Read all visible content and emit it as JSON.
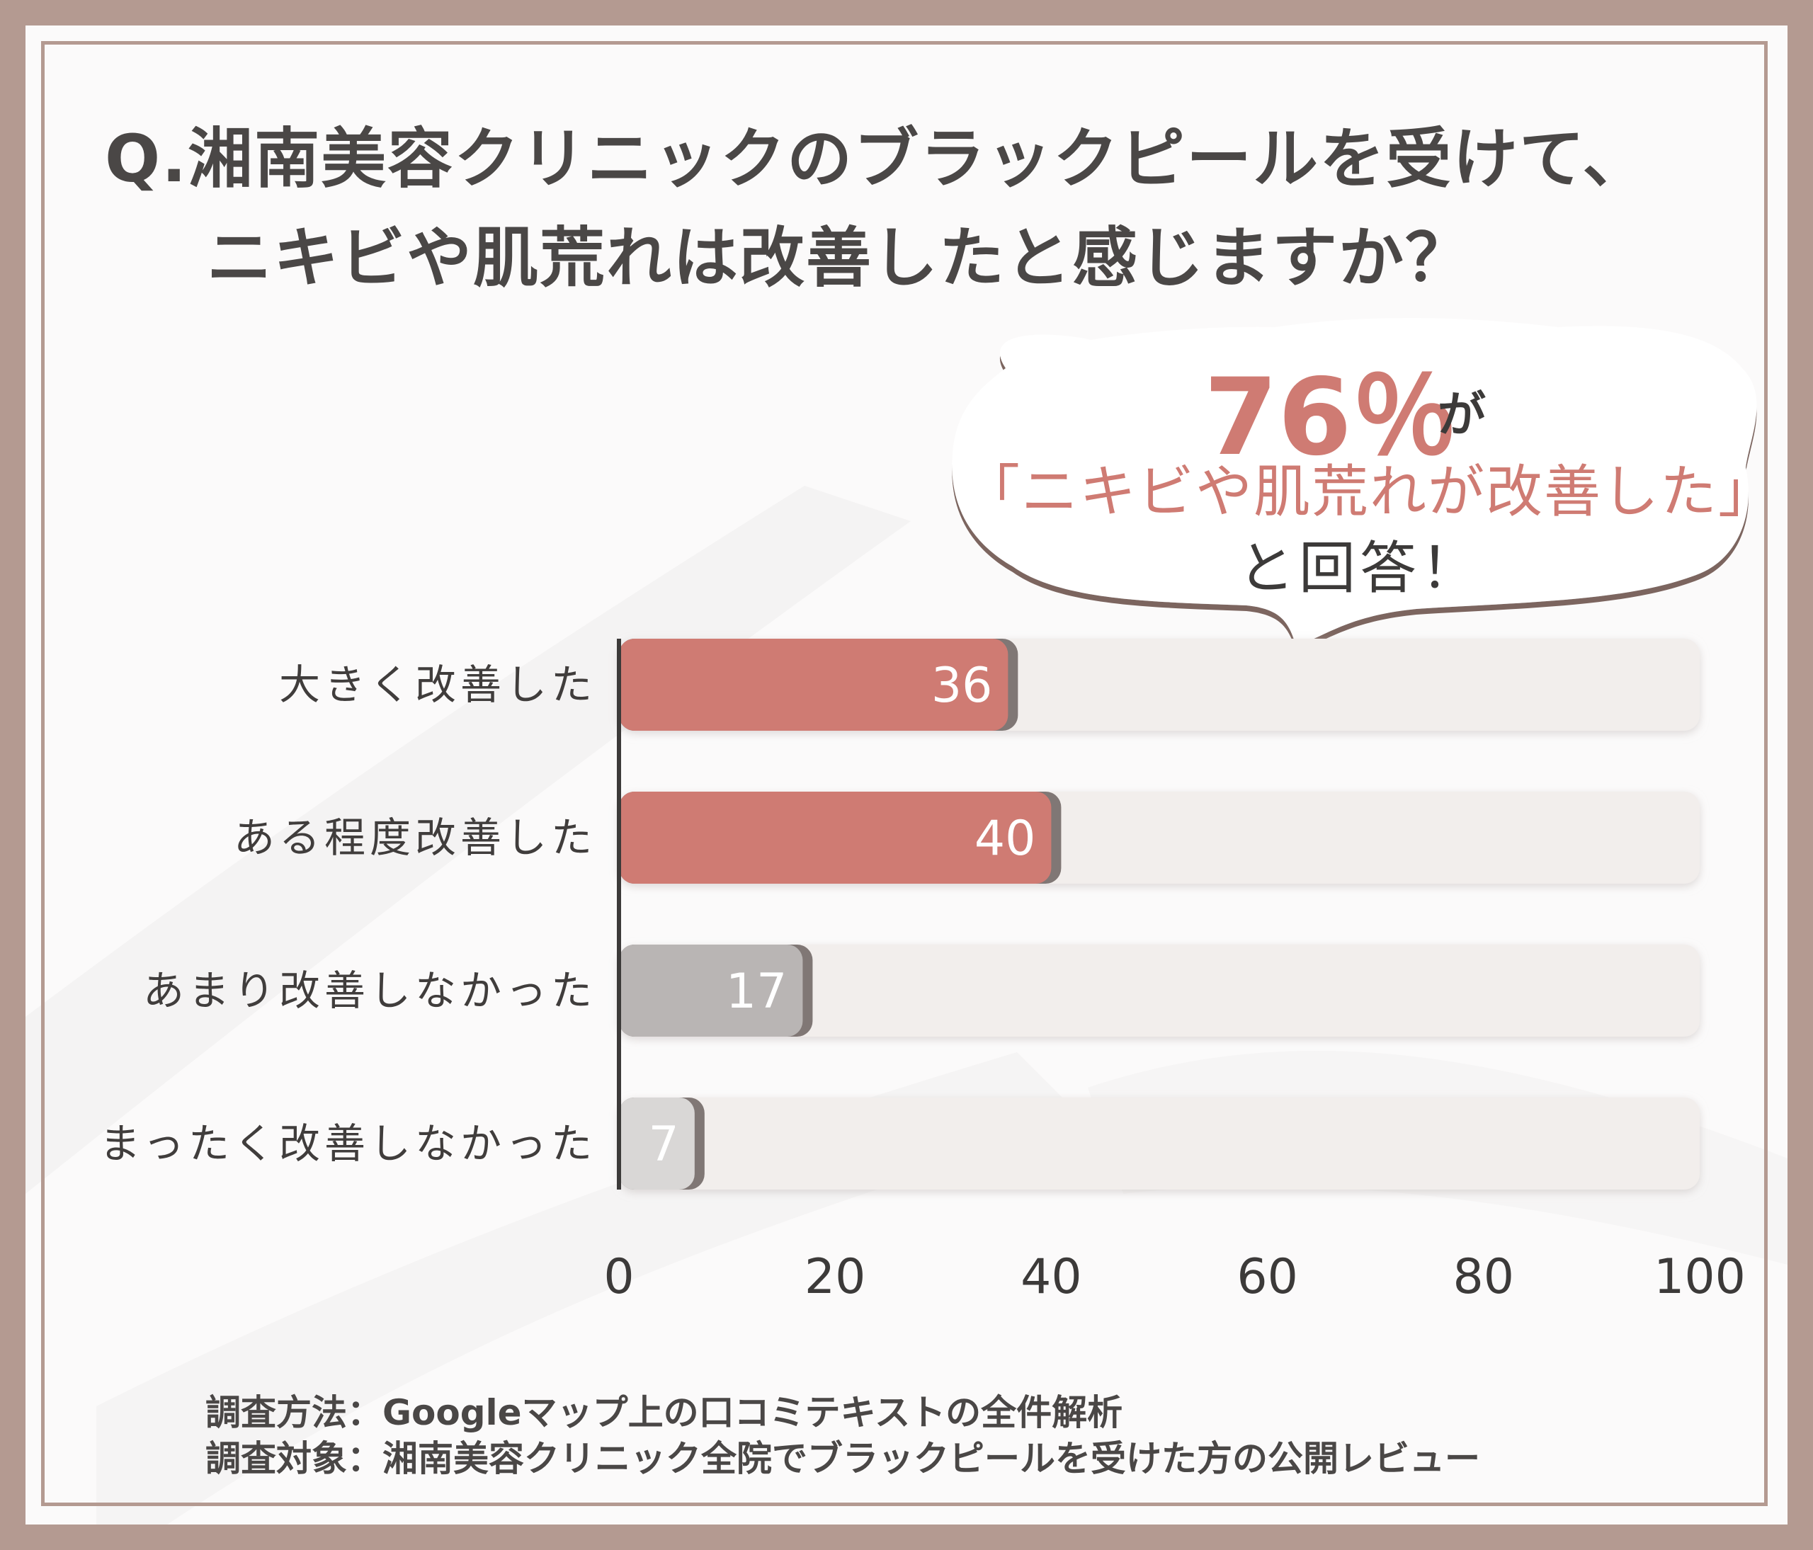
{
  "title": {
    "line1": "Q.湘南美容クリニックのブラックピールを受けて、",
    "line2": "ニキビや肌荒れは改善したと感じますか？"
  },
  "callout": {
    "percent": "76％",
    "suffix": "が",
    "quote": "「ニキビや肌荒れが改善した」",
    "answer": "と回答！"
  },
  "footer": {
    "method": "調査方法：Googleマップ上の口コミテキストの全件解析",
    "target": "調査対象：湘南美容クリニック全院でブラックピールを受けた方の公開レビュー"
  },
  "colors": {
    "accent": "#cf7b73",
    "neutral_dark": "#b9b5b4",
    "neutral_light": "#d9d7d6",
    "track": "#f2eeec",
    "frame": "#b49a91"
  },
  "chart_data": {
    "type": "bar",
    "orientation": "horizontal",
    "categories": [
      "大きく改善した",
      "ある程度改善した",
      "あまり改善しなかった",
      "まったく改善しなかった"
    ],
    "values": [
      36,
      40,
      17,
      7
    ],
    "xlim": [
      0,
      100
    ],
    "xticks": [
      "0",
      "20",
      "40",
      "60",
      "80",
      "100"
    ],
    "bar_colors": [
      "#cf7b73",
      "#cf7b73",
      "#b9b5b4",
      "#d9d7d6"
    ],
    "title": "",
    "xlabel": "",
    "ylabel": ""
  }
}
